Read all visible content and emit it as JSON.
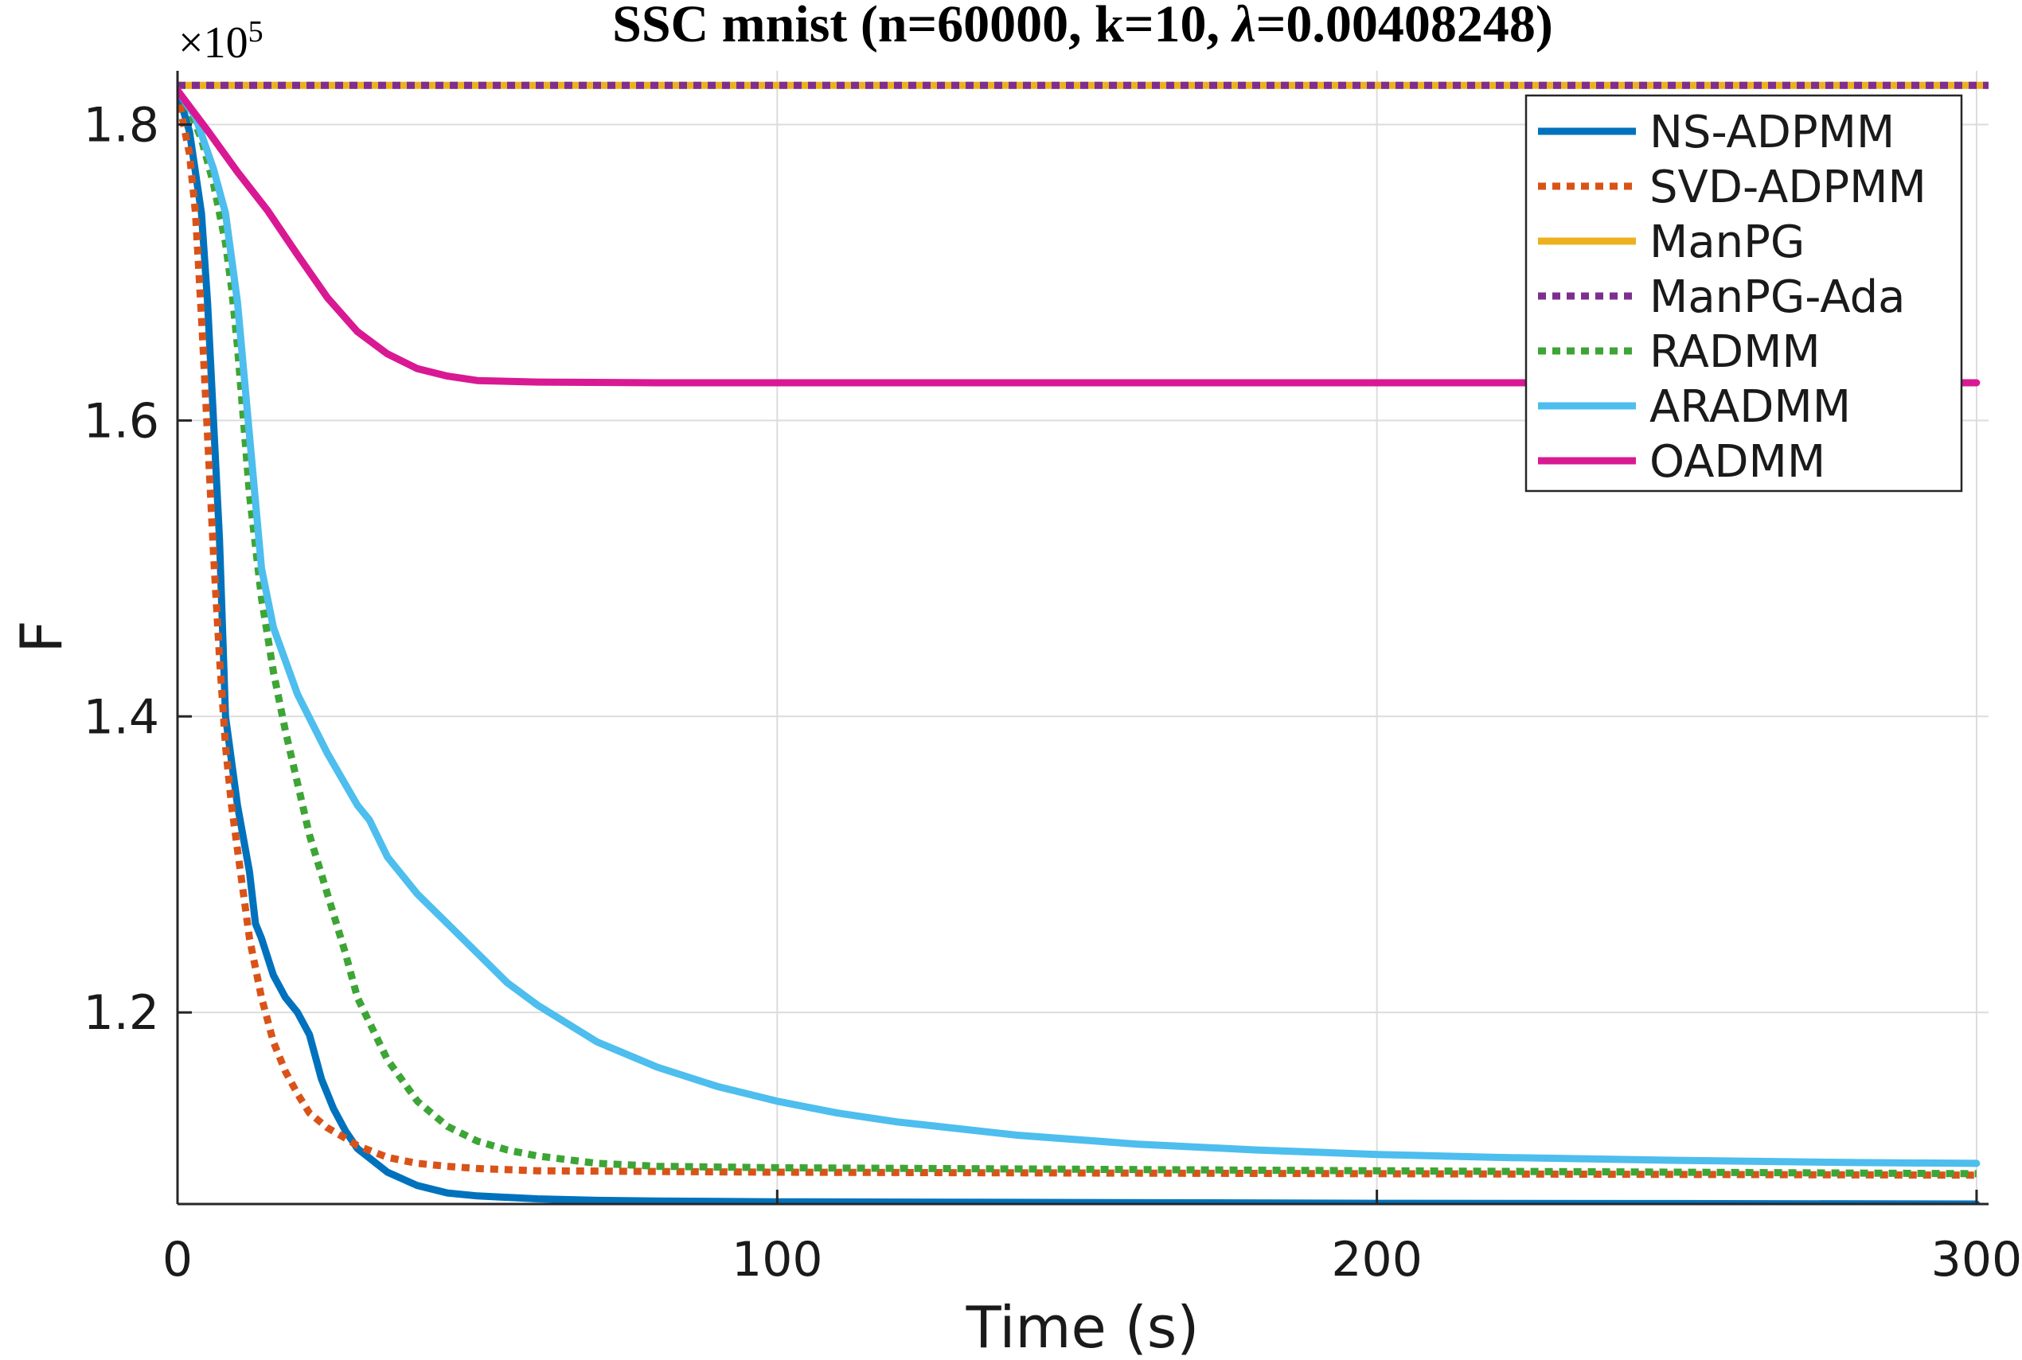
{
  "chart_data": {
    "type": "line",
    "title": "SSC mnist (n=60000, k=10, λ=0.00408248)",
    "title_parts": {
      "before_lambda": "SSC mnist (n=60000, k=10, ",
      "lambda": "λ",
      "after_lambda": "=0.00408248)"
    },
    "xlabel": "Time (s)",
    "ylabel": "F",
    "y_exponent": {
      "base": "×10",
      "power": "5"
    },
    "xlim": [
      0,
      302
    ],
    "ylim": [
      1.0705,
      1.8363
    ],
    "x_ticks": [
      0,
      100,
      200,
      300
    ],
    "x_tick_labels": [
      "0",
      "100",
      "200",
      "300"
    ],
    "y_ticks": [
      1.2,
      1.4,
      1.6,
      1.8
    ],
    "y_tick_labels": [
      "1.2",
      "1.4",
      "1.6",
      "1.8"
    ],
    "grid": true,
    "legend_position": "top-right",
    "series": [
      {
        "name": "NS-ADPMM",
        "color": "#0072BD",
        "dash": "solid",
        "x": [
          0,
          2,
          4,
          5,
          6,
          7,
          8,
          10,
          12,
          13,
          14,
          16,
          18,
          20,
          22,
          24,
          26,
          28,
          30,
          35,
          40,
          45,
          50,
          60,
          70,
          80,
          100,
          150,
          200,
          250,
          300
        ],
        "y": [
          1.823,
          1.795,
          1.74,
          1.68,
          1.6,
          1.52,
          1.4,
          1.34,
          1.295,
          1.26,
          1.25,
          1.225,
          1.21,
          1.2,
          1.185,
          1.155,
          1.135,
          1.12,
          1.108,
          1.092,
          1.083,
          1.078,
          1.076,
          1.074,
          1.073,
          1.0725,
          1.072,
          1.0715,
          1.071,
          1.0708,
          1.0705
        ]
      },
      {
        "name": "SVD-ADPMM",
        "color": "#D95319",
        "dash": "dotted",
        "x": [
          0,
          1,
          2,
          3,
          4,
          5,
          6,
          7,
          8,
          9,
          10,
          12,
          14,
          16,
          18,
          20,
          22,
          25,
          28,
          30,
          35,
          40,
          45,
          50,
          60,
          80,
          100,
          150,
          200,
          250,
          300
        ],
        "y": [
          1.823,
          1.8,
          1.78,
          1.74,
          1.67,
          1.59,
          1.51,
          1.44,
          1.38,
          1.34,
          1.31,
          1.25,
          1.21,
          1.18,
          1.16,
          1.145,
          1.132,
          1.122,
          1.115,
          1.11,
          1.102,
          1.098,
          1.096,
          1.0945,
          1.093,
          1.0925,
          1.092,
          1.0915,
          1.091,
          1.0905,
          1.09
        ]
      },
      {
        "name": "ManPG",
        "color": "#EDB120",
        "dash": "solid",
        "x": [
          0,
          302
        ],
        "y": [
          1.8265,
          1.8265
        ]
      },
      {
        "name": "ManPG-Ada",
        "color": "#7E2F8E",
        "dash": "dotted",
        "x": [
          0,
          302
        ],
        "y": [
          1.8265,
          1.8265
        ]
      },
      {
        "name": "RADMM",
        "color": "#3DA535",
        "dash": "dotted",
        "x": [
          0,
          2,
          4,
          6,
          8,
          9,
          10,
          11,
          12,
          14,
          16,
          18,
          20,
          22,
          25,
          28,
          30,
          35,
          40,
          45,
          50,
          55,
          60,
          70,
          80,
          100,
          150,
          200,
          250,
          300
        ],
        "y": [
          1.823,
          1.81,
          1.79,
          1.76,
          1.72,
          1.69,
          1.65,
          1.6,
          1.55,
          1.48,
          1.43,
          1.39,
          1.355,
          1.32,
          1.28,
          1.24,
          1.21,
          1.168,
          1.14,
          1.123,
          1.113,
          1.107,
          1.103,
          1.098,
          1.096,
          1.095,
          1.094,
          1.093,
          1.092,
          1.091
        ]
      },
      {
        "name": "ARADMM",
        "color": "#4DBEEE",
        "dash": "solid",
        "x": [
          0,
          3,
          6,
          8,
          9,
          10,
          12,
          14,
          16,
          20,
          25,
          30,
          32,
          35,
          40,
          45,
          50,
          55,
          60,
          70,
          80,
          90,
          100,
          110,
          120,
          140,
          160,
          180,
          200,
          220,
          250,
          280,
          300
        ],
        "y": [
          1.823,
          1.805,
          1.77,
          1.74,
          1.71,
          1.68,
          1.59,
          1.5,
          1.46,
          1.415,
          1.375,
          1.34,
          1.33,
          1.305,
          1.28,
          1.26,
          1.24,
          1.22,
          1.205,
          1.18,
          1.163,
          1.15,
          1.14,
          1.132,
          1.126,
          1.117,
          1.111,
          1.107,
          1.104,
          1.102,
          1.1,
          1.0985,
          1.098
        ]
      },
      {
        "name": "OADMM",
        "color": "#D91993",
        "dash": "solid",
        "x": [
          0,
          5,
          10,
          15,
          20,
          25,
          30,
          35,
          40,
          45,
          50,
          60,
          80,
          100,
          150,
          200,
          250,
          300
        ],
        "y": [
          1.823,
          1.796,
          1.768,
          1.742,
          1.712,
          1.683,
          1.66,
          1.645,
          1.635,
          1.63,
          1.627,
          1.626,
          1.6255,
          1.6255,
          1.6255,
          1.6255,
          1.6255,
          1.6255
        ]
      }
    ]
  }
}
